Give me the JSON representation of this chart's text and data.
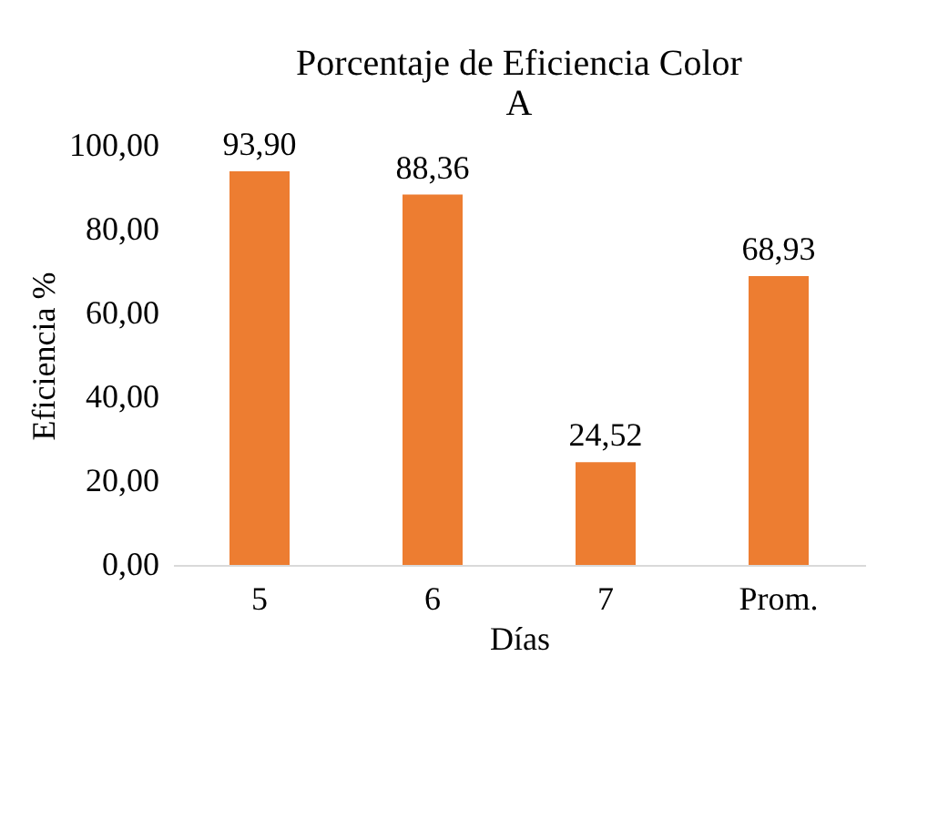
{
  "chart_data": {
    "type": "bar",
    "title": "Porcentaje de Eficiencia Color A",
    "xlabel": "Días",
    "ylabel": "Eficiencia %",
    "categories": [
      "5",
      "6",
      "7",
      "Prom."
    ],
    "values": [
      93.9,
      88.36,
      24.52,
      68.93
    ],
    "value_labels": [
      "93,90",
      "88,36",
      "24,52",
      "68,93"
    ],
    "color": "#ed7d31",
    "ylim": [
      0,
      100
    ],
    "yticks": [
      {
        "value": 0,
        "label": "0,00"
      },
      {
        "value": 20,
        "label": "20,00"
      },
      {
        "value": 40,
        "label": "40,00"
      },
      {
        "value": 60,
        "label": "60,00"
      },
      {
        "value": 80,
        "label": "80,00"
      },
      {
        "value": 100,
        "label": "100,00"
      }
    ],
    "grid": false
  }
}
